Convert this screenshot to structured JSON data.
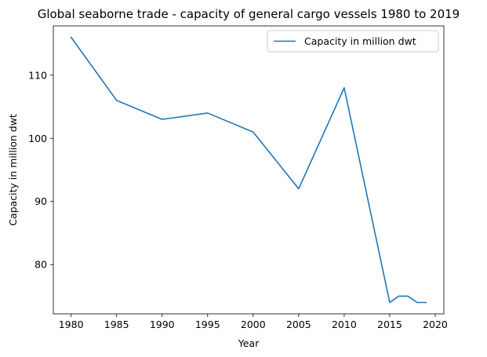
{
  "chart_data": {
    "type": "line",
    "title": "Global seaborne trade - capacity of general cargo vessels 1980 to 2019",
    "xlabel": "Year",
    "ylabel": "Capacity in million dwt",
    "x": [
      1980,
      1985,
      1990,
      1995,
      2000,
      2005,
      2010,
      2015,
      2016,
      2017,
      2018,
      2019
    ],
    "series": [
      {
        "name": "Capacity in million dwt",
        "color": "#1f77b4",
        "values": [
          116,
          106,
          103,
          104,
          101,
          92,
          108,
          74,
          75,
          75,
          74,
          74
        ]
      }
    ],
    "xlim": [
      1978.05,
      2020.95
    ],
    "ylim": [
      72.2,
      117.8
    ],
    "xticks": [
      1980,
      1985,
      1990,
      1995,
      2000,
      2005,
      2010,
      2015,
      2020
    ],
    "yticks": [
      80,
      90,
      100,
      110
    ],
    "grid": false,
    "legend_position": "top-right"
  }
}
